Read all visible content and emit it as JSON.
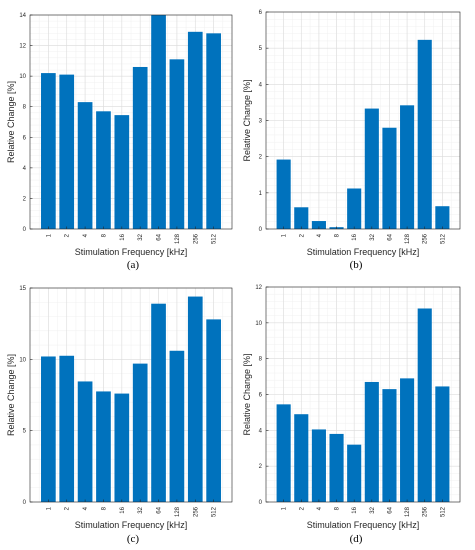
{
  "chart_data": [
    {
      "type": "bar",
      "panel_label": "(a)",
      "categories": [
        "1",
        "2",
        "4",
        "8",
        "16",
        "32",
        "64",
        "128",
        "256",
        "512"
      ],
      "values": [
        10.2,
        10.1,
        8.3,
        7.7,
        7.45,
        10.6,
        14.0,
        11.1,
        12.9,
        12.8
      ],
      "xlabel": "Stimulation Frequency [kHz]",
      "ylabel": "Relative Change [%]",
      "ylim": [
        0,
        14
      ],
      "yticks": [
        "0",
        "2",
        "4",
        "6",
        "8",
        "10",
        "12",
        "14"
      ],
      "grid": true,
      "bar_color": "#0072BD"
    },
    {
      "type": "bar",
      "panel_label": "(b)",
      "categories": [
        "1",
        "2",
        "4",
        "8",
        "16",
        "32",
        "64",
        "128",
        "256",
        "512"
      ],
      "values": [
        1.92,
        0.6,
        0.22,
        0.05,
        1.12,
        3.33,
        2.8,
        3.42,
        5.23,
        0.63
      ],
      "xlabel": "Stimulation Frequency [kHz]",
      "ylabel": "Relative Change [%]",
      "ylim": [
        0,
        6
      ],
      "yticks": [
        "0",
        "1",
        "2",
        "3",
        "4",
        "5",
        "6"
      ],
      "grid": true,
      "bar_color": "#0072BD"
    },
    {
      "type": "bar",
      "panel_label": "(c)",
      "categories": [
        "1",
        "2",
        "4",
        "8",
        "16",
        "32",
        "64",
        "128",
        "256",
        "512"
      ],
      "values": [
        10.2,
        10.25,
        8.45,
        7.75,
        7.6,
        9.7,
        13.9,
        10.6,
        14.4,
        12.8
      ],
      "xlabel": "Stimulation Frequency [kHz]",
      "ylabel": "Relative Change [%]",
      "ylim": [
        0,
        15
      ],
      "yticks": [
        "0",
        "5",
        "10",
        "15"
      ],
      "grid": true,
      "bar_color": "#0072BD"
    },
    {
      "type": "bar",
      "panel_label": "(d)",
      "categories": [
        "1",
        "2",
        "4",
        "8",
        "16",
        "32",
        "64",
        "128",
        "256",
        "512"
      ],
      "values": [
        5.45,
        4.9,
        4.05,
        3.8,
        3.2,
        6.7,
        6.3,
        6.9,
        10.8,
        6.45
      ],
      "xlabel": "Stimulation Frequency [kHz]",
      "ylabel": "Relative Change [%]",
      "ylim": [
        0,
        12
      ],
      "yticks": [
        "0",
        "2",
        "4",
        "6",
        "8",
        "10",
        "12"
      ],
      "grid": true,
      "bar_color": "#0072BD"
    }
  ]
}
